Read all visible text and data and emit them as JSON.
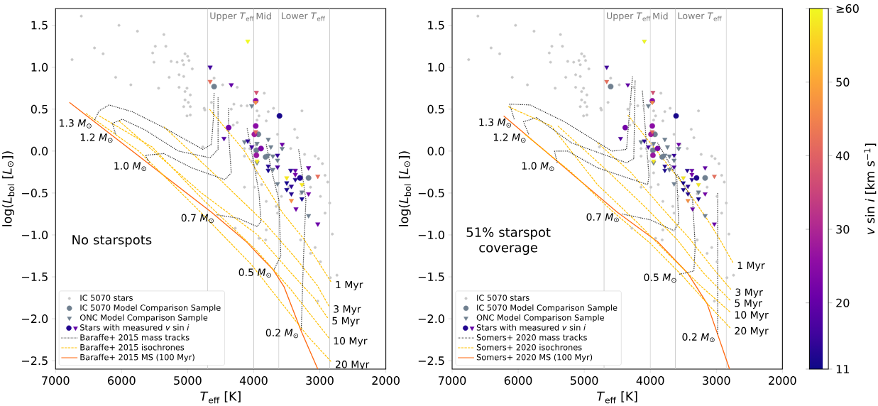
{
  "chart_data": [
    {
      "type": "scatter",
      "title": "No starspots",
      "xlabel": "*T*$_{eff}$ [K]",
      "ylabel": "log(*L*$_{bol}$ [*L*$_{⊙}$])",
      "xlim": [
        7000,
        2000
      ],
      "ylim": [
        -2.6,
        1.7
      ],
      "xticks": [
        7000,
        6000,
        5000,
        4000,
        3000,
        2000
      ],
      "yticks": [
        {
          "value": -2.5,
          "label": "−2.5"
        },
        {
          "value": -2,
          "label": "−2.0"
        },
        {
          "value": -1.5,
          "label": "−1.5"
        },
        {
          "value": -1,
          "label": "−1.0"
        },
        {
          "value": -0.5,
          "label": "−0.5"
        },
        {
          "value": 0,
          "label": "0.0"
        },
        {
          "value": 0.5,
          "label": "0.5"
        },
        {
          "value": 1,
          "label": "1.0"
        },
        {
          "value": 1.5,
          "label": "1.5"
        }
      ],
      "legend": "bottom left",
      "ref_lines": [
        {
          "axis": "x",
          "value": 4700,
          "label": "Upper *T*$_{eff}$",
          "color": "#c0c0c0"
        },
        {
          "axis": "x",
          "value": 4000,
          "label": "Mid",
          "color": "#c0c0c0"
        },
        {
          "axis": "x",
          "value": 3620,
          "label": "Lower *T*$_{eff}$",
          "color": "#c0c0c0"
        },
        {
          "axis": "x",
          "value": 2850,
          "color": "#c0c0c0"
        }
      ],
      "annotations": [
        {
          "text": "1.3 *M*$_{⊙}$",
          "x": 6410,
          "y": 0.37
        },
        {
          "text": "1.2 *M*$_{⊙}$",
          "x": 6090,
          "y": 0.2
        },
        {
          "text": "1.0 *M*$_{⊙}$",
          "x": 5580,
          "y": -0.14
        },
        {
          "text": "0.7 *M*$_{⊙}$",
          "x": 4560,
          "y": -0.76
        },
        {
          "text": "0.5 *M*$_{⊙}$",
          "x": 3690,
          "y": -1.41
        },
        {
          "text": "0.2 *M*$_{⊙}$",
          "x": 3280,
          "y": -2.13
        },
        {
          "text": "1 Myr",
          "x": 2830,
          "y": -1.56
        },
        {
          "text": "3 Myr",
          "x": 2860,
          "y": -1.85
        },
        {
          "text": "5 Myr",
          "x": 2880,
          "y": -1.99
        },
        {
          "text": "10 Myr",
          "x": 2860,
          "y": -2.23
        },
        {
          "text": "20 Myr",
          "x": 2830,
          "y": -2.51
        }
      ],
      "series": [
        {
          "name": "IC 5070 stars",
          "marker": "circle",
          "color": "#c8c8c8",
          "x": [
            6610,
            6750,
            6410,
            6280,
            6040,
            5760,
            5360,
            5490,
            5330,
            5530,
            5510,
            6090,
            5860,
            5440,
            5280,
            5130,
            5060,
            5250,
            5160,
            5040,
            5000,
            5080,
            4980,
            5060,
            4930,
            5130,
            5010,
            5040,
            4960,
            5040,
            4990,
            5060,
            4960,
            5010,
            4960,
            4740,
            4640,
            4600,
            4470,
            4250,
            4300,
            4190,
            4340,
            4100,
            4250,
            4310,
            3810,
            3780,
            3700,
            3840,
            3270,
            3380,
            3340,
            3640,
            3550,
            3440,
            3230,
            3070,
            3020,
            2960,
            2920,
            2880,
            2850,
            2990,
            3140,
            3290,
            3470,
            3580,
            3660,
            3810,
            4140,
            4140,
            4140,
            4030,
            3950,
            3990,
            3880,
            3950,
            3950,
            3920,
            4060,
            3970,
            4770,
            4750,
            4280,
            3920,
            3820,
            3810,
            3640,
            3290,
            3070,
            2990,
            2810,
            2740,
            2840,
            3030,
            3140,
            2920
          ],
          "values": [
            1.61,
            1.09,
            1.23,
            1.16,
            1.5,
            1.43,
            1.39,
            1.25,
            1.25,
            1.17,
            1.06,
            0.88,
            0.79,
            0.75,
            0.88,
            0.91,
            0.89,
            1.07,
            1.06,
            1.16,
            1.13,
            1.08,
            1.08,
            1.03,
            0.98,
            0.76,
            0.75,
            0.71,
            0.67,
            0.61,
            0.58,
            0.53,
            0.53,
            0.42,
            0.43,
            0.49,
            0.58,
            0.87,
            0.79,
            0.76,
            0.56,
            0.54,
            0.5,
            0.54,
            0.34,
            0.31,
            0.36,
            0.47,
            0.51,
            0.69,
            0.48,
            0.26,
            0.16,
            0.2,
            0.08,
            0.03,
            -0.04,
            -0.06,
            -0.09,
            -0.15,
            -0.29,
            -0.37,
            -0.62,
            -0.54,
            -0.43,
            -0.51,
            -0.43,
            -0.54,
            -0.66,
            -0.6,
            -0.43,
            -0.06,
            0.03,
            -0.12,
            -0.26,
            -0.43,
            -0.4,
            0.37,
            0.48,
            0.42,
            0.03,
            0.07,
            0.05,
            0.51,
            -0.92,
            -1.04,
            -1.06,
            -0.94,
            -0.74,
            -1.06,
            -1.15,
            -1.32,
            -0.99,
            -1.48,
            -1.51,
            -1.79,
            -1.22,
            -0.74
          ]
        },
        {
          "name": "IC 5070 Model Comparison Sample",
          "marker": "circle",
          "color": "#708090",
          "x": [
            4600,
            3930,
            3960,
            3820,
            3170
          ],
          "values": [
            0.77,
            0.2,
            0.01,
            -0.07,
            -0.32
          ]
        },
        {
          "name": "ONC Model Comparison Sample",
          "marker": "triangle",
          "color": "#708090",
          "x": [
            4030,
            4140,
            3950,
            3780,
            3740,
            3950,
            3780,
            3710,
            3640,
            3570,
            3710,
            3640,
            3270,
            3170
          ],
          "values": [
            0.54,
            0.11,
            0.09,
            0.14,
            0.05,
            -0.14,
            -0.05,
            -0.06,
            -0.11,
            0.03,
            -0.22,
            -0.39,
            -0.49,
            -0.77
          ]
        },
        {
          "name": "Stars with measured *v* sin *i*",
          "marker": "circle",
          "x": [
            4380,
            3970,
            3970,
            3990,
            3890,
            3960,
            3610,
            3300
          ],
          "values": [
            0.28,
            0.6,
            0.3,
            0.2,
            0.03,
            -0.05,
            0.42,
            -0.32
          ],
          "colors": [
            "#7303a7",
            "#8a0ba5",
            "#8a0ba5",
            "#a01b9b",
            "#7b06a6",
            "#98159f",
            "#18078b",
            "#220690"
          ]
        },
        {
          "marker": "triangle",
          "x": [
            4090,
            4660,
            4660,
            4340,
            3960,
            3970,
            3970,
            4450,
            4090,
            4030,
            3950,
            3570,
            3640,
            3640,
            3780,
            3780,
            3440,
            3370,
            3370,
            3370,
            3500,
            3500,
            3430,
            3500,
            3430,
            3270,
            3270,
            3430,
            3360,
            3170,
            3170,
            3030,
            3030
          ],
          "values": [
            1.31,
            1.0,
            0.83,
            0.79,
            0.7,
            0.58,
            0.23,
            0.15,
            0.12,
            0.05,
            -0.12,
            0.08,
            -0.05,
            -0.19,
            -0.18,
            -0.23,
            -0.23,
            -0.23,
            -0.28,
            -0.34,
            -0.32,
            -0.38,
            -0.42,
            -0.46,
            -0.51,
            -0.4,
            -0.57,
            -0.59,
            -0.69,
            -0.2,
            -0.51,
            -0.3,
            -0.87
          ],
          "colors": [
            "#f0f921",
            "#42049d",
            "#e66e5b",
            "#6301a6",
            "#d25071",
            "#f59044",
            "#e3685f",
            "#5302a2",
            "#2d0694",
            "#42049d",
            "#f5e723",
            "#6c01a8",
            "#370599",
            "#4a039f",
            "#220690",
            "#18078b",
            "#220690",
            "#6301a6",
            "#7303a7",
            "#220690",
            "#f5e723",
            "#18078b",
            "#2d0694",
            "#18078b",
            "#220690",
            "#f5e723",
            "#18078b",
            "#f59044",
            "#6c01a8",
            "#6301a6",
            "#7303a7",
            "#e66e5b",
            "#6c01a8"
          ]
        },
        {
          "name": "Baraffe+ 2015 mass tracks",
          "type": "line",
          "line_style": "dotted",
          "color": "#333333",
          "x": [
            6410,
            6340,
            6190,
            5840,
            5360,
            4770,
            4640,
            4610,
            4600
          ],
          "values": [
            0.37,
            0.48,
            0.55,
            0.47,
            0.28,
            0.02,
            0.08,
            0.4,
            0.69
          ]
        },
        {
          "type": "line",
          "line_style": "dotted",
          "color": "#333333",
          "x": [
            6090,
            6140,
            5990,
            5640,
            5140,
            4660,
            4540,
            4540
          ],
          "values": [
            0.2,
            0.33,
            0.38,
            0.25,
            0.0,
            -0.08,
            0.02,
            0.64
          ]
        },
        {
          "type": "line",
          "line_style": "dotted",
          "color": "#333333",
          "x": [
            5580,
            5640,
            5360,
            4940,
            4440,
            4340,
            4380,
            4380
          ],
          "values": [
            -0.14,
            -0.05,
            -0.03,
            -0.2,
            -0.34,
            -0.26,
            0.2,
            0.51
          ]
        },
        {
          "type": "line",
          "line_style": "dotted",
          "color": "#333333",
          "x": [
            4560,
            4240,
            3950,
            3890,
            3920,
            4010,
            4100
          ],
          "values": [
            -0.76,
            -0.8,
            -0.9,
            -0.84,
            -0.5,
            -0.1,
            0.27
          ]
        },
        {
          "type": "line",
          "line_style": "dotted",
          "color": "#333333",
          "x": [
            3690,
            3590,
            3620,
            3740,
            3810
          ],
          "values": [
            -1.41,
            -1.25,
            -0.58,
            -0.2,
            0.08
          ]
        },
        {
          "type": "line",
          "line_style": "dotted",
          "color": "#333333",
          "x": [
            3280,
            3250,
            3210,
            3320
          ],
          "values": [
            -2.13,
            -1.35,
            -0.58,
            0.02
          ]
        },
        {
          "name": "Baraffe+ 2015 isochrones",
          "type": "line",
          "line_style": "dashed",
          "color": "#ffc000",
          "x": [
            4670,
            4140,
            3560,
            3240,
            3040,
            2830
          ],
          "values": [
            0.5,
            0.0,
            -0.74,
            -1.05,
            -1.3,
            -1.56
          ]
        },
        {
          "type": "line",
          "line_style": "dashed",
          "color": "#ffc000",
          "x": [
            5360,
            4590,
            3840,
            3340,
            3040,
            2860
          ],
          "values": [
            0.29,
            -0.28,
            -0.85,
            -1.3,
            -1.6,
            -1.85
          ]
        },
        {
          "type": "line",
          "line_style": "dashed",
          "color": "#ffc000",
          "x": [
            6040,
            4790,
            3940,
            3440,
            3090,
            2880
          ],
          "values": [
            0.36,
            -0.5,
            -1.0,
            -1.45,
            -1.75,
            -1.99
          ]
        },
        {
          "type": "line",
          "line_style": "dashed",
          "color": "#ffc000",
          "x": [
            6340,
            5540,
            4740,
            3940,
            3440,
            3140,
            2860
          ],
          "values": [
            0.42,
            0.05,
            -0.6,
            -1.2,
            -1.65,
            -1.95,
            -2.23
          ]
        },
        {
          "type": "line",
          "line_style": "dashed",
          "color": "#ffc000",
          "x": [
            6540,
            5740,
            4840,
            4040,
            3540,
            3190,
            2830
          ],
          "values": [
            0.45,
            0.0,
            -0.7,
            -1.35,
            -1.85,
            -2.2,
            -2.51
          ]
        },
        {
          "name": "Baraffe+ 2015 MS (100 Myr)",
          "type": "line",
          "line_style": "solid",
          "color": "#ff6a13",
          "x": [
            6790,
            4640,
            4100,
            3910,
            3710,
            3540,
            3280,
            3030
          ],
          "values": [
            0.58,
            -0.73,
            -1.09,
            -1.25,
            -1.41,
            -1.62,
            -2.15,
            -2.6
          ]
        }
      ]
    },
    {
      "type": "scatter",
      "title": "51% starspot coverage",
      "xlabel": "*T*$_{eff}$ [K]",
      "ylabel": "log(*L*$_{bol}$ [*L*$_{⊙}$])",
      "xlim": [
        7000,
        2000
      ],
      "ylim": [
        -2.6,
        1.7
      ],
      "xticks": [
        7000,
        6000,
        5000,
        4000,
        3000,
        2000
      ],
      "yticks": [
        {
          "value": -2.5,
          "label": "−2.5"
        },
        {
          "value": -2,
          "label": "−2.0"
        },
        {
          "value": -1.5,
          "label": "−1.5"
        },
        {
          "value": -1,
          "label": "−1.0"
        },
        {
          "value": -0.5,
          "label": "−0.5"
        },
        {
          "value": 0,
          "label": "0.0"
        },
        {
          "value": 0.5,
          "label": "0.5"
        },
        {
          "value": 1,
          "label": "1.0"
        },
        {
          "value": 1.5,
          "label": "1.5"
        }
      ],
      "legend": "bottom left",
      "clim": [
        11,
        60
      ],
      "cticks": [
        11,
        20,
        30,
        40,
        50,
        {
          "value": 60,
          "label": "≥60"
        }
      ],
      "clabel": "*v* sin *i* [km s$^{−1}$]",
      "ref_lines": [
        {
          "axis": "x",
          "value": 4700,
          "label": "Upper *T*$_{eff}$",
          "color": "#c0c0c0"
        },
        {
          "axis": "x",
          "value": 4000,
          "label": "Mid",
          "color": "#c0c0c0"
        },
        {
          "axis": "x",
          "value": 3620,
          "label": "Lower *T*$_{eff}$",
          "color": "#c0c0c0"
        },
        {
          "axis": "x",
          "value": 2850,
          "color": "#c0c0c0"
        }
      ],
      "annotations": [
        {
          "text": "1.3 *M*$_{⊙}$",
          "x": 6060,
          "y": 0.38
        },
        {
          "text": "1.2 *M*$_{⊙}$",
          "x": 5840,
          "y": 0.2
        },
        {
          "text": "1.0 *M*$_{⊙}$",
          "x": 5410,
          "y": -0.14
        },
        {
          "text": "0.7 *M*$_{⊙}$",
          "x": 4430,
          "y": -0.75
        },
        {
          "text": "0.5 *M*$_{⊙}$",
          "x": 3560,
          "y": -1.47
        },
        {
          "text": "0.2 *M*$_{⊙}$",
          "x": 2980,
          "y": -2.18
        },
        {
          "text": "1 Myr",
          "x": 2750,
          "y": -1.33
        },
        {
          "text": "3 Myr",
          "x": 2780,
          "y": -1.65
        },
        {
          "text": "5 Myr",
          "x": 2790,
          "y": -1.78
        },
        {
          "text": "10 Myr",
          "x": 2790,
          "y": -1.92
        },
        {
          "text": "20 Myr",
          "x": 2790,
          "y": -2.11
        }
      ],
      "series": [
        {
          "name": "IC 5070 stars",
          "marker": "circle",
          "color": "#c8c8c8",
          "x": [
            6610,
            6750,
            6410,
            6280,
            6040,
            5760,
            5360,
            5490,
            5330,
            5530,
            5510,
            6090,
            5860,
            5440,
            5280,
            5130,
            5060,
            5250,
            5160,
            5040,
            5000,
            5080,
            4980,
            5060,
            4930,
            5130,
            5010,
            5040,
            4960,
            5040,
            4990,
            5060,
            4960,
            5010,
            4960,
            4740,
            4640,
            4600,
            4470,
            4250,
            4300,
            4190,
            4340,
            4100,
            4250,
            4310,
            3810,
            3780,
            3700,
            3840,
            3270,
            3380,
            3340,
            3640,
            3550,
            3440,
            3230,
            3070,
            3020,
            2960,
            2920,
            2880,
            2850,
            2990,
            3140,
            3290,
            3470,
            3580,
            3660,
            3810,
            4140,
            4140,
            4140,
            4030,
            3950,
            3990,
            3880,
            3950,
            3950,
            3920,
            4060,
            3970,
            4770,
            4750,
            4280,
            3920,
            3820,
            3810,
            3640,
            3290,
            3070,
            2990,
            2810,
            2740,
            2840,
            3030,
            3140,
            2920
          ],
          "values": [
            1.61,
            1.09,
            1.23,
            1.16,
            1.5,
            1.43,
            1.39,
            1.25,
            1.25,
            1.17,
            1.06,
            0.88,
            0.79,
            0.75,
            0.88,
            0.91,
            0.89,
            1.07,
            1.06,
            1.16,
            1.13,
            1.08,
            1.08,
            1.03,
            0.98,
            0.76,
            0.75,
            0.71,
            0.67,
            0.61,
            0.58,
            0.53,
            0.53,
            0.42,
            0.43,
            0.49,
            0.58,
            0.87,
            0.79,
            0.76,
            0.56,
            0.54,
            0.5,
            0.54,
            0.34,
            0.31,
            0.36,
            0.47,
            0.51,
            0.69,
            0.48,
            0.26,
            0.16,
            0.2,
            0.08,
            0.03,
            -0.04,
            -0.06,
            -0.09,
            -0.15,
            -0.29,
            -0.37,
            -0.62,
            -0.54,
            -0.43,
            -0.51,
            -0.43,
            -0.54,
            -0.66,
            -0.6,
            -0.43,
            -0.06,
            0.03,
            -0.12,
            -0.26,
            -0.43,
            -0.4,
            0.37,
            0.48,
            0.42,
            0.03,
            0.07,
            0.05,
            0.51,
            -0.92,
            -1.04,
            -1.06,
            -0.94,
            -0.74,
            -1.06,
            -1.15,
            -1.32,
            -0.99,
            -1.48,
            -1.51,
            -1.79,
            -1.22,
            -0.74
          ]
        },
        {
          "name": "IC 5070 Model Comparison Sample",
          "marker": "circle",
          "color": "#708090",
          "x": [
            4600,
            3930,
            3960,
            3820,
            3170
          ],
          "values": [
            0.77,
            0.2,
            0.01,
            -0.07,
            -0.32
          ]
        },
        {
          "name": "ONC Model Comparison Sample",
          "marker": "triangle",
          "color": "#708090",
          "x": [
            4030,
            4140,
            3950,
            3780,
            3740,
            3950,
            3780,
            3710,
            3640,
            3570,
            3710,
            3640,
            3270,
            3170
          ],
          "values": [
            0.54,
            0.11,
            0.09,
            0.14,
            0.05,
            -0.14,
            -0.05,
            -0.06,
            -0.11,
            0.03,
            -0.22,
            -0.39,
            -0.49,
            -0.77
          ]
        },
        {
          "name": "Stars with measured *v* sin *i*",
          "marker": "circle",
          "x": [
            4380,
            3970,
            3970,
            3990,
            3890,
            3960,
            3610,
            3300
          ],
          "values": [
            0.28,
            0.6,
            0.3,
            0.2,
            0.03,
            -0.05,
            0.42,
            -0.32
          ],
          "cvalues": [
            22,
            25,
            25,
            28,
            23,
            27,
            12,
            13
          ],
          "colors": [
            "#7303a7",
            "#8a0ba5",
            "#8a0ba5",
            "#a01b9b",
            "#7b06a6",
            "#98159f",
            "#18078b",
            "#220690"
          ]
        },
        {
          "marker": "triangle",
          "x": [
            4090,
            4660,
            4660,
            4340,
            3960,
            3970,
            3970,
            4450,
            4090,
            4030,
            3950,
            3570,
            3640,
            3640,
            3780,
            3780,
            3440,
            3370,
            3370,
            3370,
            3500,
            3500,
            3430,
            3500,
            3430,
            3270,
            3270,
            3430,
            3360,
            3170,
            3170,
            3030,
            3030
          ],
          "values": [
            1.31,
            1.0,
            0.83,
            0.79,
            0.7,
            0.58,
            0.23,
            0.15,
            0.12,
            0.05,
            -0.12,
            0.08,
            -0.05,
            -0.19,
            -0.18,
            -0.23,
            -0.23,
            -0.23,
            -0.28,
            -0.34,
            -0.32,
            -0.38,
            -0.42,
            -0.46,
            -0.51,
            -0.4,
            -0.57,
            -0.59,
            -0.69,
            -0.2,
            -0.51,
            -0.3,
            -0.87
          ],
          "cvalues": [
            60,
            16,
            42,
            20,
            37,
            47,
            41,
            18,
            14,
            16,
            58,
            21,
            15,
            17,
            13,
            12,
            13,
            20,
            22,
            13,
            58,
            12,
            14,
            12,
            13,
            58,
            12,
            47,
            21,
            20,
            22,
            42,
            21
          ],
          "colors": [
            "#f0f921",
            "#42049d",
            "#e66e5b",
            "#6301a6",
            "#d25071",
            "#f59044",
            "#e3685f",
            "#5302a2",
            "#2d0694",
            "#42049d",
            "#f5e723",
            "#6c01a8",
            "#370599",
            "#4a039f",
            "#220690",
            "#18078b",
            "#220690",
            "#6301a6",
            "#7303a7",
            "#220690",
            "#f5e723",
            "#18078b",
            "#2d0694",
            "#18078b",
            "#220690",
            "#f5e723",
            "#18078b",
            "#f59044",
            "#6c01a8",
            "#6301a6",
            "#7303a7",
            "#e66e5b",
            "#6c01a8"
          ]
        },
        {
          "name": "Somers+ 2020 mass tracks",
          "type": "line",
          "line_style": "dotted",
          "color": "#333333",
          "x": [
            6060,
            6130,
            5820,
            5300,
            4580,
            4360,
            4270
          ],
          "values": [
            0.38,
            0.56,
            0.55,
            0.35,
            0.0,
            0.02,
            0.89
          ]
        },
        {
          "type": "line",
          "line_style": "dotted",
          "color": "#333333",
          "x": [
            5840,
            5920,
            5720,
            5200,
            4360,
            4250,
            4230
          ],
          "values": [
            0.2,
            0.35,
            0.4,
            0.1,
            -0.14,
            -0.09,
            0.84
          ]
        },
        {
          "type": "line",
          "line_style": "dotted",
          "color": "#333333",
          "x": [
            5410,
            5450,
            5250,
            4800,
            4040,
            4020,
            4120
          ],
          "values": [
            -0.14,
            0.0,
            0.0,
            -0.2,
            -0.4,
            -0.3,
            0.72
          ]
        },
        {
          "type": "line",
          "line_style": "dotted",
          "color": "#333333",
          "x": [
            4430,
            4000,
            3640,
            3570,
            3600,
            3890
          ],
          "values": [
            -0.75,
            -0.82,
            -0.95,
            -0.86,
            -0.3,
            0.1
          ]
        },
        {
          "type": "line",
          "line_style": "dotted",
          "color": "#333333",
          "x": [
            3560,
            3340,
            3320,
            3360,
            3590
          ],
          "values": [
            -1.47,
            -1.43,
            -1.13,
            -0.58,
            -0.28
          ]
        },
        {
          "type": "line",
          "line_style": "dotted",
          "color": "#333333",
          "x": [
            2980,
            2980
          ],
          "values": [
            -2.18,
            -0.5
          ]
        },
        {
          "name": "Somers+ 2020 isochrones",
          "type": "line",
          "line_style": "dashed",
          "color": "#ffc000",
          "x": [
            4340,
            3900,
            3500,
            3150,
            2950,
            2750
          ],
          "values": [
            0.43,
            0.0,
            -0.4,
            -0.8,
            -1.05,
            -1.33
          ]
        },
        {
          "type": "line",
          "line_style": "dashed",
          "color": "#ffc000",
          "x": [
            4800,
            4300,
            3800,
            3400,
            3050,
            2780
          ],
          "values": [
            0.1,
            -0.25,
            -0.7,
            -1.05,
            -1.4,
            -1.65
          ]
        },
        {
          "type": "line",
          "line_style": "dashed",
          "color": "#ffc000",
          "x": [
            5400,
            4700,
            4100,
            3600,
            3200,
            2790
          ],
          "values": [
            0.3,
            -0.2,
            -0.65,
            -1.05,
            -1.45,
            -1.78
          ]
        },
        {
          "type": "line",
          "line_style": "dashed",
          "color": "#ffc000",
          "x": [
            6150,
            5500,
            4800,
            4200,
            3700,
            3250,
            2790
          ],
          "values": [
            0.53,
            0.3,
            -0.4,
            -0.85,
            -1.25,
            -1.6,
            -1.92
          ]
        },
        {
          "type": "line",
          "line_style": "dashed",
          "color": "#ffc000",
          "x": [
            5900,
            5200,
            4600,
            4000,
            3500,
            3100,
            2790
          ],
          "values": [
            0.2,
            -0.25,
            -0.7,
            -1.1,
            -1.5,
            -1.85,
            -2.11
          ]
        },
        {
          "name": "Somers+ 2020 MS (100 Myr)",
          "type": "line",
          "line_style": "solid",
          "color": "#ff6a13",
          "x": [
            6220,
            4500,
            3890,
            3430,
            3140,
            2800
          ],
          "values": [
            0.42,
            -0.73,
            -1.08,
            -1.46,
            -1.82,
            -2.6
          ]
        }
      ]
    }
  ]
}
